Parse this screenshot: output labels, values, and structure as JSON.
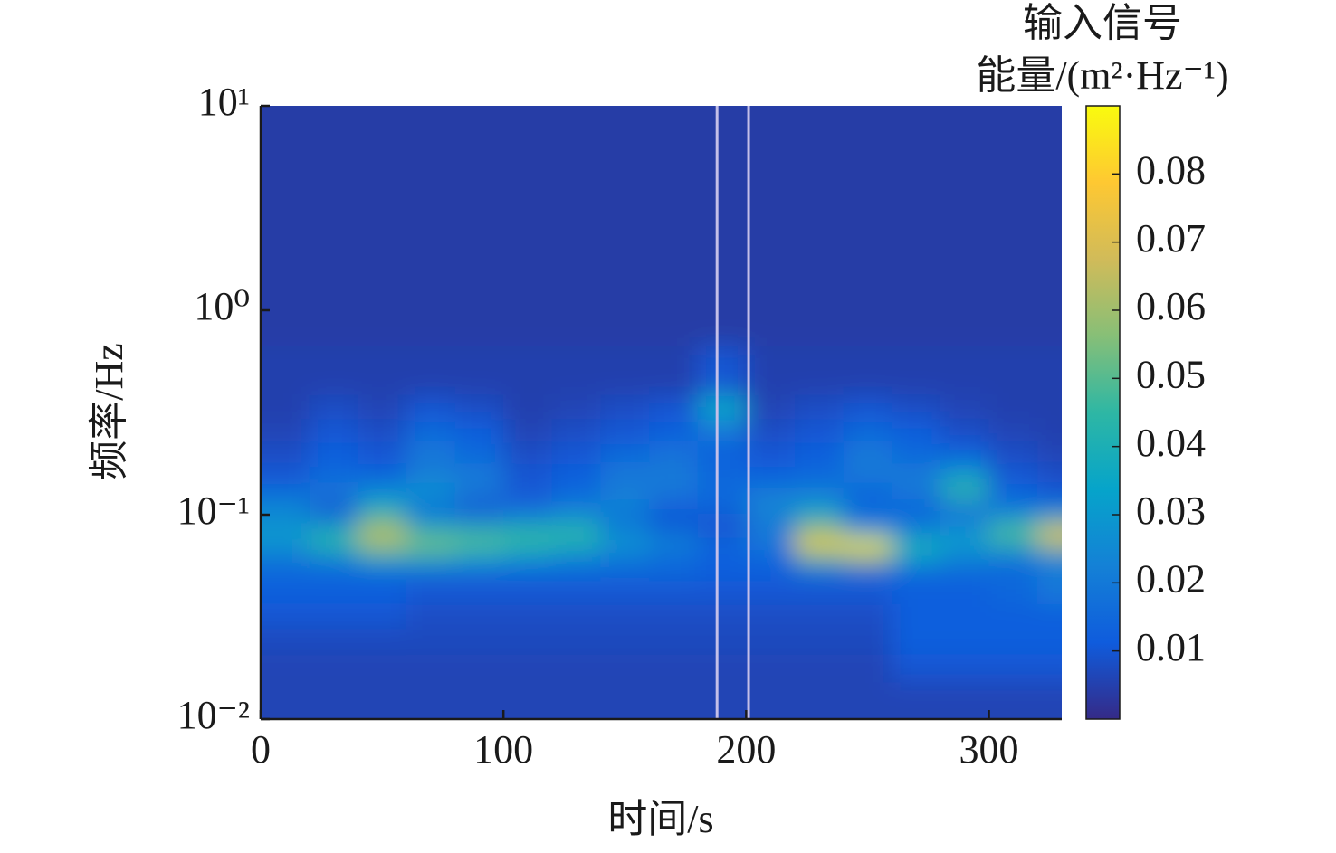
{
  "chart_data": {
    "type": "heatmap",
    "x_label": "时间/s",
    "y_label": "频率/Hz",
    "colorbar_title": [
      "输入信号",
      "能量/(m²·Hz⁻¹)"
    ],
    "xlim": [
      0,
      330
    ],
    "xticks": [
      0,
      100,
      200,
      300
    ],
    "ylim": [
      0.01,
      10
    ],
    "y_scale": "log",
    "yticks": [
      {
        "value": 0.01,
        "label": "10⁻²"
      },
      {
        "value": 0.1,
        "label": "10⁻¹"
      },
      {
        "value": 1,
        "label": "10⁰"
      },
      {
        "value": 10,
        "label": "10¹"
      }
    ],
    "clim": [
      0,
      0.09
    ],
    "cticks": [
      0.01,
      0.02,
      0.03,
      0.04,
      0.05,
      0.06,
      0.07,
      0.08
    ],
    "colormap": [
      "#352a87",
      "#0f5cdd",
      "#1481d6",
      "#06a4ca",
      "#2eb7a4",
      "#87bf77",
      "#d1bb59",
      "#fec832",
      "#f9fb0e"
    ],
    "x": [
      10,
      30,
      50,
      70,
      90,
      110,
      130,
      150,
      170,
      190,
      210,
      230,
      250,
      270,
      290,
      310,
      330
    ],
    "y": [
      0.013,
      0.018,
      0.024,
      0.032,
      0.042,
      0.053,
      0.063,
      0.072,
      0.082,
      0.095,
      0.11,
      0.13,
      0.16,
      0.2,
      0.26,
      0.33,
      0.45,
      1,
      4
    ],
    "z": [
      [
        0.006,
        0.006,
        0.006,
        0.006,
        0.006,
        0.006,
        0.006,
        0.006,
        0.006,
        0.006,
        0.006,
        0.006,
        0.006,
        0.006,
        0.006,
        0.006,
        0.006
      ],
      [
        0.006,
        0.006,
        0.006,
        0.006,
        0.006,
        0.006,
        0.006,
        0.006,
        0.006,
        0.006,
        0.006,
        0.006,
        0.006,
        0.01,
        0.01,
        0.01,
        0.01
      ],
      [
        0.007,
        0.007,
        0.007,
        0.007,
        0.007,
        0.007,
        0.007,
        0.007,
        0.007,
        0.007,
        0.007,
        0.007,
        0.007,
        0.012,
        0.012,
        0.012,
        0.012
      ],
      [
        0.01,
        0.01,
        0.01,
        0.008,
        0.008,
        0.008,
        0.008,
        0.008,
        0.008,
        0.008,
        0.008,
        0.008,
        0.008,
        0.012,
        0.012,
        0.012,
        0.012
      ],
      [
        0.012,
        0.012,
        0.012,
        0.01,
        0.01,
        0.01,
        0.01,
        0.01,
        0.01,
        0.01,
        0.01,
        0.01,
        0.01,
        0.012,
        0.012,
        0.015,
        0.02
      ],
      [
        0.015,
        0.015,
        0.015,
        0.015,
        0.015,
        0.015,
        0.015,
        0.015,
        0.015,
        0.012,
        0.012,
        0.015,
        0.015,
        0.015,
        0.015,
        0.015,
        0.02
      ],
      [
        0.02,
        0.025,
        0.04,
        0.04,
        0.035,
        0.03,
        0.025,
        0.02,
        0.015,
        0.012,
        0.015,
        0.05,
        0.06,
        0.035,
        0.025,
        0.02,
        0.025
      ],
      [
        0.03,
        0.045,
        0.06,
        0.055,
        0.05,
        0.045,
        0.04,
        0.03,
        0.025,
        0.015,
        0.02,
        0.08,
        0.085,
        0.04,
        0.03,
        0.04,
        0.06
      ],
      [
        0.03,
        0.04,
        0.065,
        0.045,
        0.045,
        0.045,
        0.045,
        0.025,
        0.015,
        0.01,
        0.02,
        0.06,
        0.035,
        0.025,
        0.03,
        0.05,
        0.075
      ],
      [
        0.025,
        0.02,
        0.05,
        0.025,
        0.02,
        0.025,
        0.03,
        0.015,
        0.01,
        0.01,
        0.02,
        0.04,
        0.015,
        0.015,
        0.02,
        0.035,
        0.04
      ],
      [
        0.025,
        0.01,
        0.035,
        0.015,
        0.01,
        0.015,
        0.02,
        0.025,
        0.012,
        0.015,
        0.025,
        0.03,
        0.015,
        0.015,
        0.02,
        0.015,
        0.015
      ],
      [
        0.015,
        0.02,
        0.025,
        0.03,
        0.02,
        0.01,
        0.015,
        0.02,
        0.02,
        0.015,
        0.02,
        0.02,
        0.015,
        0.02,
        0.045,
        0.015,
        0.01
      ],
      [
        0.01,
        0.015,
        0.012,
        0.02,
        0.02,
        0.01,
        0.012,
        0.02,
        0.02,
        0.015,
        0.012,
        0.015,
        0.02,
        0.02,
        0.03,
        0.01,
        0.008
      ],
      [
        0.008,
        0.012,
        0.01,
        0.02,
        0.015,
        0.008,
        0.01,
        0.015,
        0.018,
        0.012,
        0.01,
        0.012,
        0.02,
        0.015,
        0.012,
        0.008,
        0.006
      ],
      [
        0.006,
        0.01,
        0.008,
        0.015,
        0.012,
        0.006,
        0.008,
        0.01,
        0.012,
        0.02,
        0.008,
        0.01,
        0.015,
        0.012,
        0.008,
        0.006,
        0.005
      ],
      [
        0.005,
        0.008,
        0.006,
        0.01,
        0.008,
        0.005,
        0.006,
        0.008,
        0.01,
        0.035,
        0.006,
        0.008,
        0.01,
        0.008,
        0.006,
        0.005,
        0.005
      ],
      [
        0.005,
        0.005,
        0.005,
        0.005,
        0.005,
        0.005,
        0.005,
        0.005,
        0.005,
        0.01,
        0.005,
        0.005,
        0.005,
        0.005,
        0.005,
        0.005,
        0.005
      ],
      [
        0.004,
        0.004,
        0.004,
        0.004,
        0.004,
        0.004,
        0.004,
        0.004,
        0.004,
        0.004,
        0.004,
        0.004,
        0.004,
        0.004,
        0.004,
        0.004,
        0.004
      ],
      [
        0.004,
        0.004,
        0.004,
        0.004,
        0.004,
        0.004,
        0.004,
        0.004,
        0.004,
        0.004,
        0.004,
        0.004,
        0.004,
        0.004,
        0.004,
        0.004,
        0.004
      ]
    ],
    "vlines": {
      "x": [
        188,
        201
      ],
      "color": "#c4bfe8"
    }
  }
}
